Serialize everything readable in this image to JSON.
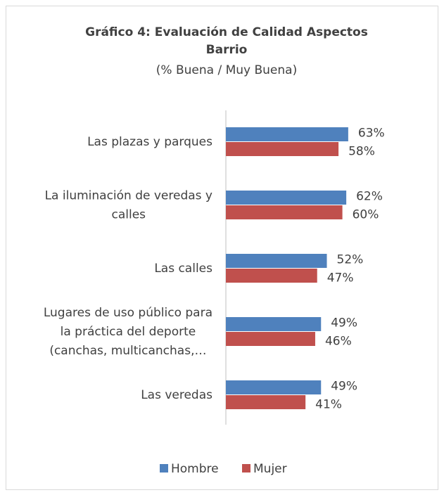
{
  "chart_data": {
    "type": "hbar",
    "title": [
      "Gráfico 4: Evaluación de Calidad Aspectos",
      "Barrio"
    ],
    "subtitle": "(% Buena / Muy Buena)",
    "categories": [
      [
        "Las plazas y parques"
      ],
      [
        "La iluminación de veredas y",
        "calles"
      ],
      [
        "Las calles"
      ],
      [
        "Lugares de uso público para",
        "la práctica del deporte",
        "(canchas, multicanchas,…"
      ],
      [
        "Las veredas"
      ]
    ],
    "series": [
      {
        "name": "Hombre",
        "color": "#4f81bd",
        "values": [
          63,
          62,
          52,
          49,
          49
        ],
        "value_labels": [
          "63%",
          "62%",
          "52%",
          "49%",
          "49%"
        ]
      },
      {
        "name": "Mujer",
        "color": "#c0504d",
        "values": [
          58,
          60,
          47,
          46,
          41
        ],
        "value_labels": [
          "58%",
          "60%",
          "47%",
          "46%",
          "41%"
        ]
      }
    ],
    "xlim": [
      0,
      100
    ]
  }
}
